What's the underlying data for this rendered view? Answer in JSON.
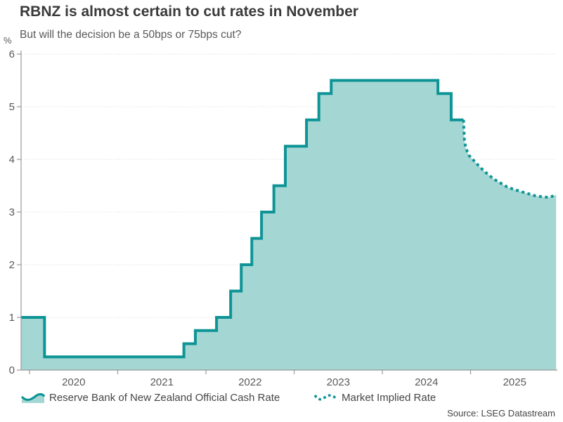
{
  "source": "Source: LSEG Datastream",
  "colors": {
    "line": "#0f9496",
    "fill": "#a4d7d4",
    "axis": "#999999",
    "grid": "#dcdcdc",
    "title_text": "#3a3a3a",
    "muted_text": "#595959"
  },
  "chart_data": {
    "type": "area",
    "title": "RBNZ is almost certain to cut rates in November",
    "subtitle": "But will the decision be a 50bps or 75bps cut?",
    "ylabel": "%",
    "xlabel": "",
    "ylim": [
      0,
      6
    ],
    "xlim_years": [
      2019.905,
      2025.99
    ],
    "y_ticks": [
      0,
      1,
      2,
      3,
      4,
      5,
      6
    ],
    "x_ticks": [
      2020,
      2021,
      2022,
      2023,
      2024,
      2025
    ],
    "grid": "dotted-horizontal",
    "legend_position": "bottom",
    "series": [
      {
        "name": "Reserve Bank of New Zealand Official Cash Rate",
        "style": "step-solid-area",
        "points": [
          [
            2019.905,
            1.0
          ],
          [
            2020.17,
            0.25
          ],
          [
            2021.75,
            0.5
          ],
          [
            2021.88,
            0.75
          ],
          [
            2022.12,
            1.0
          ],
          [
            2022.28,
            1.5
          ],
          [
            2022.4,
            2.0
          ],
          [
            2022.52,
            2.5
          ],
          [
            2022.63,
            3.0
          ],
          [
            2022.77,
            3.5
          ],
          [
            2022.9,
            4.25
          ],
          [
            2023.14,
            4.75
          ],
          [
            2023.28,
            5.25
          ],
          [
            2023.42,
            5.5
          ],
          [
            2024.63,
            5.25
          ],
          [
            2024.78,
            4.75
          ],
          [
            2024.92,
            4.75
          ]
        ]
      },
      {
        "name": "Market Implied Rate",
        "style": "dotted-line",
        "points": [
          [
            2024.92,
            4.75
          ],
          [
            2024.925,
            4.55
          ],
          [
            2024.93,
            4.38
          ],
          [
            2024.945,
            4.22
          ],
          [
            2024.98,
            4.08
          ],
          [
            2025.03,
            3.99
          ],
          [
            2025.08,
            3.9
          ],
          [
            2025.14,
            3.8
          ],
          [
            2025.2,
            3.71
          ],
          [
            2025.27,
            3.62
          ],
          [
            2025.34,
            3.55
          ],
          [
            2025.41,
            3.48
          ],
          [
            2025.49,
            3.43
          ],
          [
            2025.57,
            3.39
          ],
          [
            2025.65,
            3.35
          ],
          [
            2025.73,
            3.31
          ],
          [
            2025.81,
            3.29
          ],
          [
            2025.88,
            3.28
          ],
          [
            2025.93,
            3.3
          ],
          [
            2025.97,
            3.33
          ]
        ]
      }
    ]
  }
}
